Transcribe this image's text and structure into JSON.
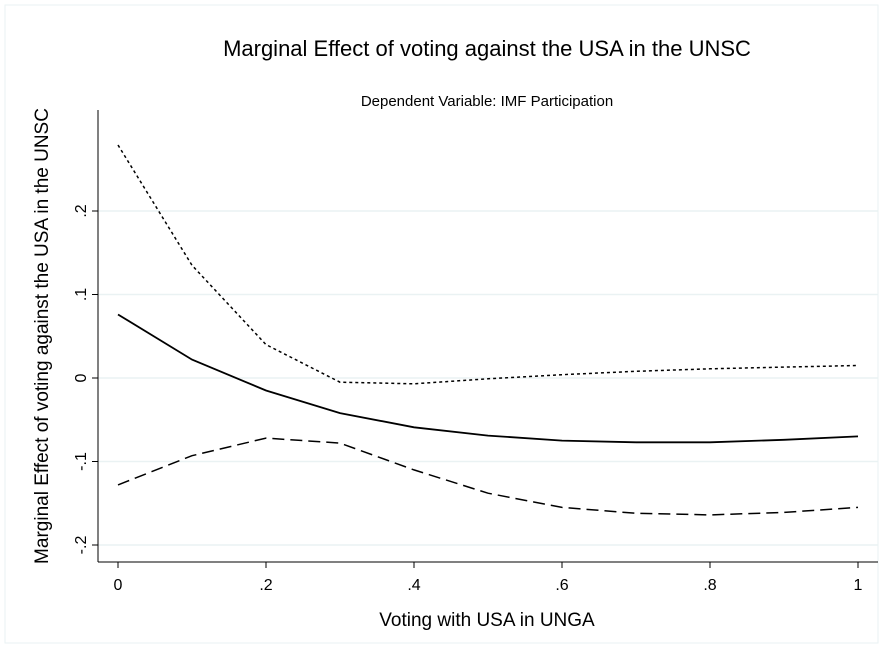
{
  "chart_data": {
    "type": "line",
    "title": "Marginal Effect of voting against the USA in the UNSC",
    "subtitle": "Dependent Variable: IMF Participation",
    "xlabel": "Voting with USA in UNGA",
    "ylabel": "Marginal Effect of voting against the USA in the UNSC",
    "xlim": [
      0,
      1
    ],
    "ylim": [
      -0.2,
      0.3
    ],
    "grid": true,
    "legend": "none",
    "x": [
      0,
      0.1,
      0.2,
      0.3,
      0.4,
      0.5,
      0.6,
      0.7,
      0.8,
      0.9,
      1.0
    ],
    "x_ticks": [
      {
        "value": 0,
        "label": "0"
      },
      {
        "value": 0.2,
        "label": ".2"
      },
      {
        "value": 0.4,
        "label": ".4"
      },
      {
        "value": 0.6,
        "label": ".6"
      },
      {
        "value": 0.8,
        "label": ".8"
      },
      {
        "value": 1.0,
        "label": "1"
      }
    ],
    "y_ticks": [
      {
        "value": -0.2,
        "label": "-.2"
      },
      {
        "value": -0.1,
        "label": "-.1"
      },
      {
        "value": 0,
        "label": "0"
      },
      {
        "value": 0.1,
        "label": ".1"
      },
      {
        "value": 0.2,
        "label": ".2"
      }
    ],
    "series": [
      {
        "style": "solid",
        "values": [
          0.076,
          0.022,
          -0.015,
          -0.042,
          -0.059,
          -0.069,
          -0.075,
          -0.077,
          -0.077,
          -0.074,
          -0.07
        ]
      },
      {
        "style": "dotted",
        "values": [
          0.279,
          0.135,
          0.04,
          -0.005,
          -0.007,
          -0.001,
          0.004,
          0.008,
          0.011,
          0.013,
          0.015
        ]
      },
      {
        "style": "dashed",
        "values": [
          -0.128,
          -0.093,
          -0.072,
          -0.078,
          -0.11,
          -0.138,
          -0.155,
          -0.162,
          -0.164,
          -0.161,
          -0.155
        ]
      }
    ]
  }
}
